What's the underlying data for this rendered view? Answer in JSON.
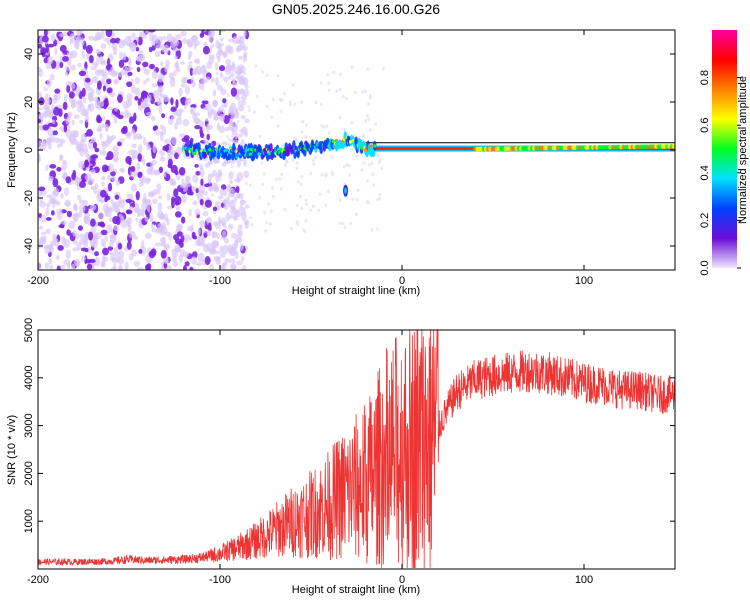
{
  "figure": {
    "title": "GN05.2025.246.16.00.G26"
  },
  "chart_data": [
    {
      "type": "heatmap",
      "xlabel": "Height of straight line (km)",
      "ylabel": "Frequency (Hz)",
      "xlim": [
        -200,
        150
      ],
      "ylim": [
        -50,
        50
      ],
      "xticks": [
        -200,
        -100,
        0,
        100
      ],
      "yticks": [
        -40,
        -20,
        0,
        20,
        40
      ],
      "xtick_labels": [
        "-200",
        "-100",
        "0",
        "100"
      ],
      "ytick_labels": [
        "-40",
        "-20",
        "0",
        "20",
        "40"
      ],
      "colorbar": {
        "label": "Normalized spectral amplitude",
        "range": [
          0,
          1
        ],
        "ticks": [
          0.0,
          0.2,
          0.4,
          0.6,
          0.8
        ],
        "tick_labels": [
          "0.0",
          "0.2",
          "0.4",
          "0.6",
          "0.8"
        ],
        "colormap": [
          "#f0e8ff",
          "#6a0dd8",
          "#0040ff",
          "#00e0ff",
          "#00ff20",
          "#ffff00",
          "#ff8000",
          "#ff0000",
          "#ff00a0"
        ]
      },
      "features": {
        "noise_region_x": [
          -200,
          -105
        ],
        "signal_track": [
          {
            "x": -120,
            "freq": 0
          },
          {
            "x": -100,
            "freq": -1
          },
          {
            "x": -80,
            "freq": -1
          },
          {
            "x": -60,
            "freq": 0
          },
          {
            "x": -40,
            "freq": 2
          },
          {
            "x": -30,
            "freq": 4
          },
          {
            "x": -20,
            "freq": 1
          },
          {
            "x": -10,
            "freq": 0
          },
          {
            "x": 0,
            "freq": 0
          },
          {
            "x": 50,
            "freq": 0.5
          },
          {
            "x": 100,
            "freq": 1
          },
          {
            "x": 150,
            "freq": 1.5
          }
        ],
        "outlier": {
          "x": -31,
          "freq": -17
        }
      }
    },
    {
      "type": "line",
      "xlabel": "Height of straight line (km)",
      "ylabel": "SNR (10 * v/v)",
      "xlim": [
        -200,
        150
      ],
      "ylim": [
        0,
        5000
      ],
      "xticks": [
        -200,
        -100,
        0,
        100
      ],
      "yticks": [
        1000,
        2000,
        3000,
        4000,
        5000
      ],
      "xtick_labels": [
        "-200",
        "-100",
        "0",
        "100"
      ],
      "ytick_labels": [
        "1000",
        "2000",
        "3000",
        "4000",
        "5000"
      ],
      "color": "#ee3333",
      "series": [
        {
          "name": "SNR",
          "x": [
            -200,
            -180,
            -160,
            -150,
            -140,
            -120,
            -110,
            -100,
            -90,
            -80,
            -70,
            -60,
            -50,
            -40,
            -30,
            -20,
            -15,
            -10,
            -5,
            0,
            5,
            10,
            15,
            20,
            25,
            30,
            40,
            50,
            60,
            70,
            80,
            90,
            100,
            110,
            120,
            130,
            140,
            150
          ],
          "y": [
            150,
            150,
            160,
            200,
            180,
            200,
            240,
            320,
            450,
            600,
            800,
            1000,
            1150,
            1350,
            1600,
            1800,
            2000,
            2300,
            2400,
            2500,
            2550,
            2650,
            2750,
            2950,
            3350,
            3700,
            3950,
            4050,
            4100,
            4150,
            4100,
            4000,
            3900,
            3850,
            3750,
            3750,
            3650,
            3650
          ]
        }
      ]
    }
  ]
}
